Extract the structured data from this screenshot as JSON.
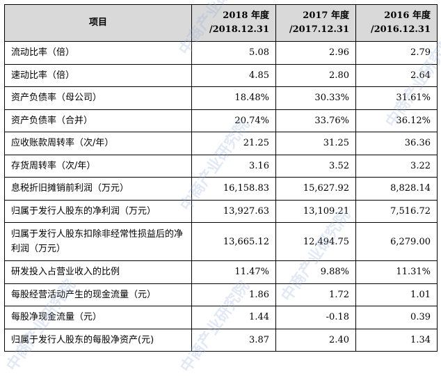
{
  "header": {
    "item": "项目",
    "col2018": [
      "2018 年度",
      "/2018.12.31"
    ],
    "col2017": [
      "2017 年度",
      "/2017.12.31"
    ],
    "col2016": [
      "2016 年度",
      "/2016.12.31"
    ]
  },
  "rows": [
    {
      "label": "流动比率（倍）",
      "v2018": "5.08",
      "v2017": "2.96",
      "v2016": "2.79"
    },
    {
      "label": "速动比率（倍）",
      "v2018": "4.85",
      "v2017": "2.80",
      "v2016": "2.64"
    },
    {
      "label": "资产负债率（母公司）",
      "v2018": "18.48%",
      "v2017": "30.33%",
      "v2016": "31.61%"
    },
    {
      "label": "资产负债率（合并）",
      "v2018": "20.74%",
      "v2017": "33.76%",
      "v2016": "36.12%"
    },
    {
      "label": "应收账款周转率（次/年）",
      "v2018": "21.25",
      "v2017": "31.25",
      "v2016": "36.36"
    },
    {
      "label": "存货周转率（次/年）",
      "v2018": "3.16",
      "v2017": "3.52",
      "v2016": "3.22"
    },
    {
      "label": "息税折旧摊销前利润（万元）",
      "v2018": "16,158.83",
      "v2017": "15,627.92",
      "v2016": "8,828.14"
    },
    {
      "label": "归属于发行人股东的净利润（万元）",
      "v2018": "13,927.63",
      "v2017": "13,109.21",
      "v2016": "7,516.72"
    },
    {
      "label": "归属于发行人股东扣除非经常性损益后的净利润（万元）",
      "v2018": "13,665.12",
      "v2017": "12,494.75",
      "v2016": "6,279.00"
    },
    {
      "label": "研发投入占营业收入的比例",
      "v2018": "11.47%",
      "v2017": "9.88%",
      "v2016": "11.31%"
    },
    {
      "label": "每股经营活动产生的现金流量（元）",
      "v2018": "1.86",
      "v2017": "1.72",
      "v2016": "1.01"
    },
    {
      "label": "每股净现金流量（元）",
      "v2018": "1.44",
      "v2017": "-0.18",
      "v2016": "0.39"
    },
    {
      "label": "归属于发行人股东的每股净资产(元)",
      "v2018": "3.87",
      "v2017": "2.40",
      "v2016": "1.34"
    }
  ],
  "watermark": "中商产业研究院"
}
